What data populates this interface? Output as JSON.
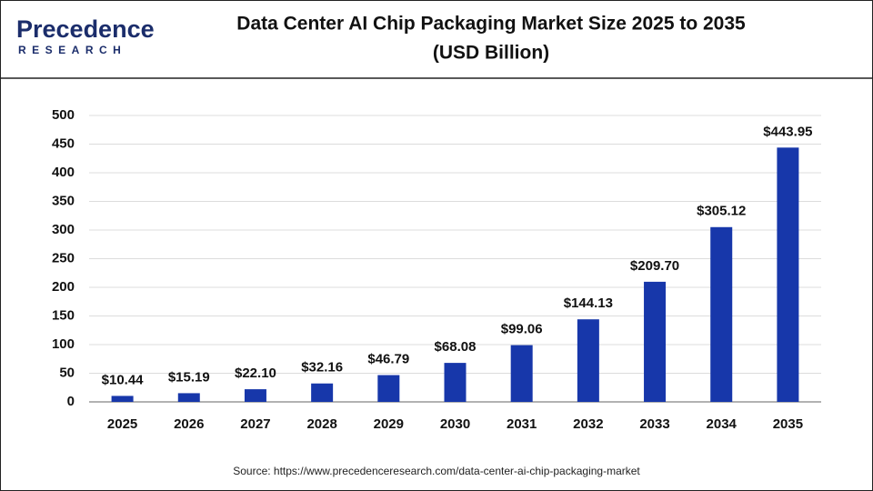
{
  "logo": {
    "name": "Precedence",
    "tagline": "RESEARCH"
  },
  "chart_data": {
    "type": "bar",
    "title": "Data Center AI Chip Packaging Market Size 2025 to 2035",
    "subtitle": "(USD Billion)",
    "categories": [
      "2025",
      "2026",
      "2027",
      "2028",
      "2029",
      "2030",
      "2031",
      "2032",
      "2033",
      "2034",
      "2035"
    ],
    "values": [
      10.44,
      15.19,
      22.1,
      32.16,
      46.79,
      68.08,
      99.06,
      144.13,
      209.7,
      305.12,
      443.95
    ],
    "value_labels": [
      "$10.44",
      "$15.19",
      "$22.10",
      "$32.16",
      "$46.79",
      "$68.08",
      "$99.06",
      "$144.13",
      "$209.70",
      "$305.12",
      "$443.95"
    ],
    "color": "#1737aa",
    "ylim": [
      0,
      500
    ],
    "yticks": [
      0,
      50,
      100,
      150,
      200,
      250,
      300,
      350,
      400,
      450,
      500
    ],
    "grid": true,
    "source": "Source: https://www.precedenceresearch.com/data-center-ai-chip-packaging-market"
  }
}
